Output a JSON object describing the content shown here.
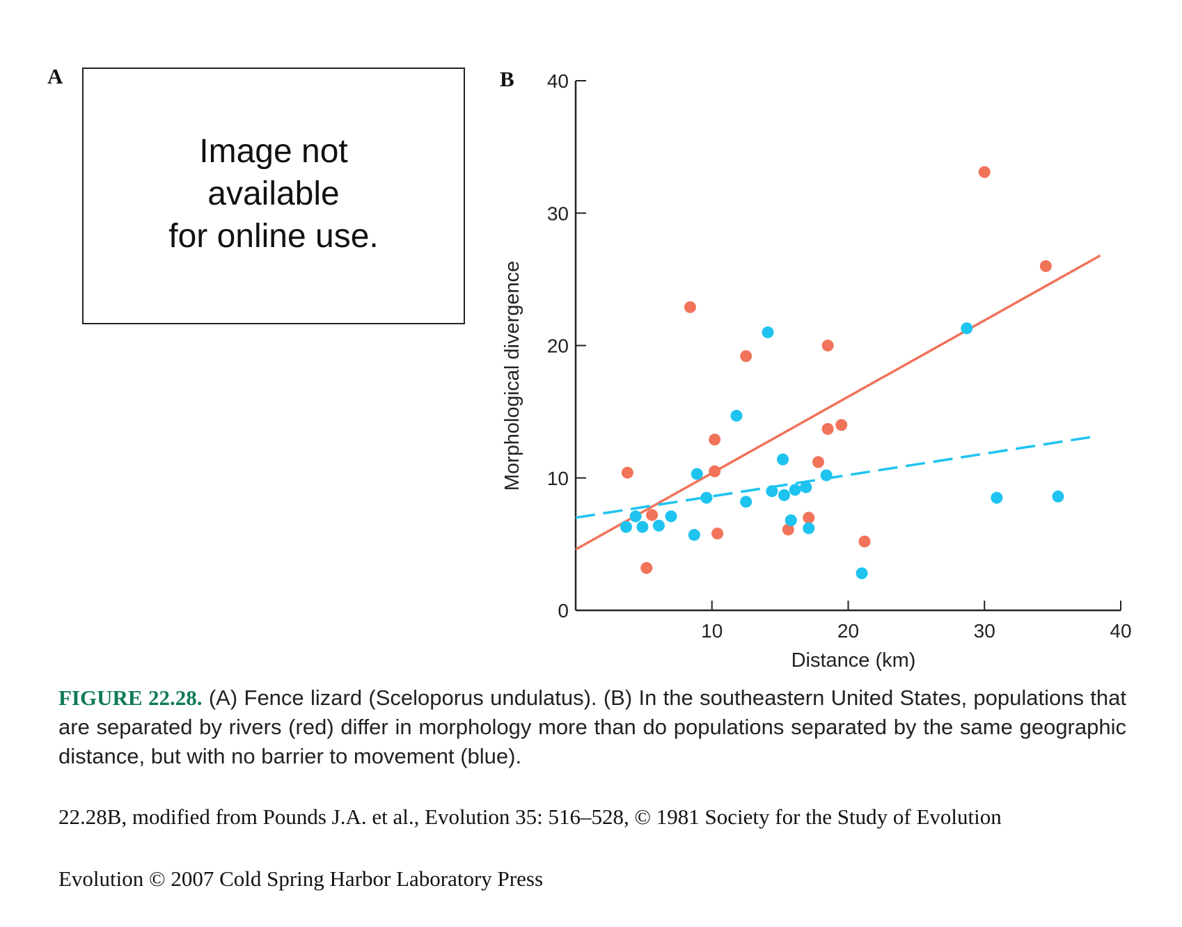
{
  "panel_a": {
    "label": "A",
    "placeholder_text": "Image not\navailable\nfor online use."
  },
  "panel_b": {
    "label": "B"
  },
  "chart_data": {
    "type": "scatter",
    "xlabel": "Distance (km)",
    "ylabel": "Morphological divergence",
    "xlim": [
      0,
      40
    ],
    "ylim": [
      0,
      40
    ],
    "xticks": [
      "10",
      "20",
      "30",
      "40"
    ],
    "yticks": [
      "0",
      "10",
      "20",
      "30",
      "40"
    ],
    "grid": false,
    "series": [
      {
        "color": "#f0735a",
        "line_style": "solid",
        "trend": [
          [
            0,
            4.6
          ],
          [
            38.5,
            26.8
          ]
        ],
        "points": [
          [
            3.8,
            10.4
          ],
          [
            5.2,
            3.2
          ],
          [
            5.6,
            7.2
          ],
          [
            8.4,
            22.9
          ],
          [
            10.2,
            12.9
          ],
          [
            10.2,
            10.5
          ],
          [
            10.4,
            5.8
          ],
          [
            12.5,
            19.2
          ],
          [
            15.6,
            6.1
          ],
          [
            17.1,
            7.0
          ],
          [
            17.8,
            11.2
          ],
          [
            18.5,
            13.7
          ],
          [
            18.5,
            20.0
          ],
          [
            19.5,
            14.0
          ],
          [
            21.2,
            5.2
          ],
          [
            30.0,
            33.1
          ],
          [
            34.5,
            26.0
          ]
        ]
      },
      {
        "color": "#1ec3ef",
        "line_style": "dashed",
        "trend": [
          [
            0,
            7.0
          ],
          [
            37.9,
            13.1
          ]
        ],
        "points": [
          [
            3.7,
            6.3
          ],
          [
            4.4,
            7.1
          ],
          [
            4.9,
            6.3
          ],
          [
            6.1,
            6.4
          ],
          [
            7.0,
            7.1
          ],
          [
            8.7,
            5.7
          ],
          [
            8.9,
            10.3
          ],
          [
            9.6,
            8.5
          ],
          [
            11.8,
            14.7
          ],
          [
            12.5,
            8.2
          ],
          [
            14.1,
            21.0
          ],
          [
            14.4,
            9.0
          ],
          [
            15.2,
            11.4
          ],
          [
            15.3,
            8.7
          ],
          [
            15.8,
            6.8
          ],
          [
            16.1,
            9.1
          ],
          [
            16.9,
            9.3
          ],
          [
            17.1,
            6.2
          ],
          [
            18.4,
            10.2
          ],
          [
            21.0,
            2.8
          ],
          [
            28.7,
            21.3
          ],
          [
            30.9,
            8.5
          ],
          [
            35.4,
            8.6
          ]
        ]
      }
    ]
  },
  "caption": {
    "figure_number": "FIGURE 22.28.",
    "text": " (A) Fence lizard (Sceloporus undulatus). (B) In the southeastern United States, populations that are separated by rivers (red) differ in morphology more than do populations separated by the same geographic distance, but with no barrier to movement (blue)."
  },
  "credit": "22.28B, modified from Pounds J.A. et al., Evolution 35: 516–528, © 1981 Society for the Study of Evolution",
  "copyright": "Evolution © 2007 Cold Spring Harbor Laboratory Press"
}
